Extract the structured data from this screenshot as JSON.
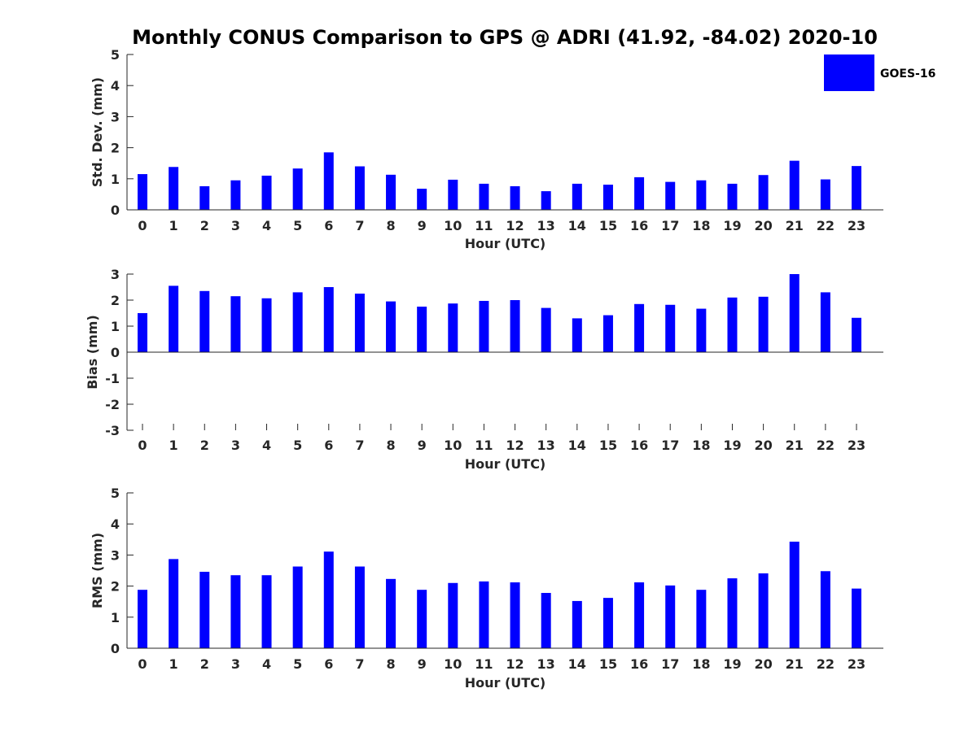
{
  "figure": {
    "title": "Monthly CONUS Comparison to GPS @ ADRI (41.92, -84.02) 2020-10",
    "legend": {
      "label": "GOES-16",
      "color": "#0000FF",
      "placement": "top-right"
    }
  },
  "chart_data": [
    {
      "type": "bar",
      "ylabel": "Std. Dev. (mm)",
      "xlabel": "Hour (UTC)",
      "ylim": [
        0,
        5
      ],
      "yticks": [
        0,
        1,
        2,
        3,
        4,
        5
      ],
      "categories": [
        "0",
        "1",
        "2",
        "3",
        "4",
        "5",
        "6",
        "7",
        "8",
        "9",
        "10",
        "11",
        "12",
        "13",
        "14",
        "15",
        "16",
        "17",
        "18",
        "19",
        "20",
        "21",
        "22",
        "23"
      ],
      "series": [
        {
          "name": "GOES-16",
          "color": "#0000FF",
          "values": [
            1.15,
            1.38,
            0.76,
            0.95,
            1.1,
            1.33,
            1.85,
            1.4,
            1.13,
            0.68,
            0.97,
            0.84,
            0.76,
            0.6,
            0.84,
            0.81,
            1.05,
            0.9,
            0.95,
            0.84,
            1.12,
            1.58,
            0.98,
            1.41
          ]
        }
      ]
    },
    {
      "type": "bar",
      "ylabel": "Bias (mm)",
      "xlabel": "Hour (UTC)",
      "ylim": [
        -3,
        3
      ],
      "yticks": [
        -3,
        -2,
        -1,
        0,
        1,
        2,
        3
      ],
      "categories": [
        "0",
        "1",
        "2",
        "3",
        "4",
        "5",
        "6",
        "7",
        "8",
        "9",
        "10",
        "11",
        "12",
        "13",
        "14",
        "15",
        "16",
        "17",
        "18",
        "19",
        "20",
        "21",
        "22",
        "23"
      ],
      "series": [
        {
          "name": "GOES-16",
          "color": "#0000FF",
          "values": [
            1.5,
            2.55,
            2.35,
            2.15,
            2.07,
            2.3,
            2.5,
            2.25,
            1.95,
            1.75,
            1.87,
            1.97,
            2.0,
            1.7,
            1.3,
            1.42,
            1.85,
            1.82,
            1.67,
            2.1,
            2.13,
            3.0,
            2.3,
            1.32
          ]
        }
      ]
    },
    {
      "type": "bar",
      "ylabel": "RMS (mm)",
      "xlabel": "Hour (UTC)",
      "ylim": [
        0,
        5
      ],
      "yticks": [
        0,
        1,
        2,
        3,
        4,
        5
      ],
      "categories": [
        "0",
        "1",
        "2",
        "3",
        "4",
        "5",
        "6",
        "7",
        "8",
        "9",
        "10",
        "11",
        "12",
        "13",
        "14",
        "15",
        "16",
        "17",
        "18",
        "19",
        "20",
        "21",
        "22",
        "23"
      ],
      "series": [
        {
          "name": "GOES-16",
          "color": "#0000FF",
          "values": [
            1.88,
            2.87,
            2.46,
            2.35,
            2.35,
            2.63,
            3.11,
            2.63,
            2.23,
            1.88,
            2.1,
            2.15,
            2.12,
            1.78,
            1.52,
            1.62,
            2.12,
            2.02,
            1.88,
            2.25,
            2.41,
            3.43,
            2.48,
            1.92
          ]
        }
      ]
    }
  ]
}
